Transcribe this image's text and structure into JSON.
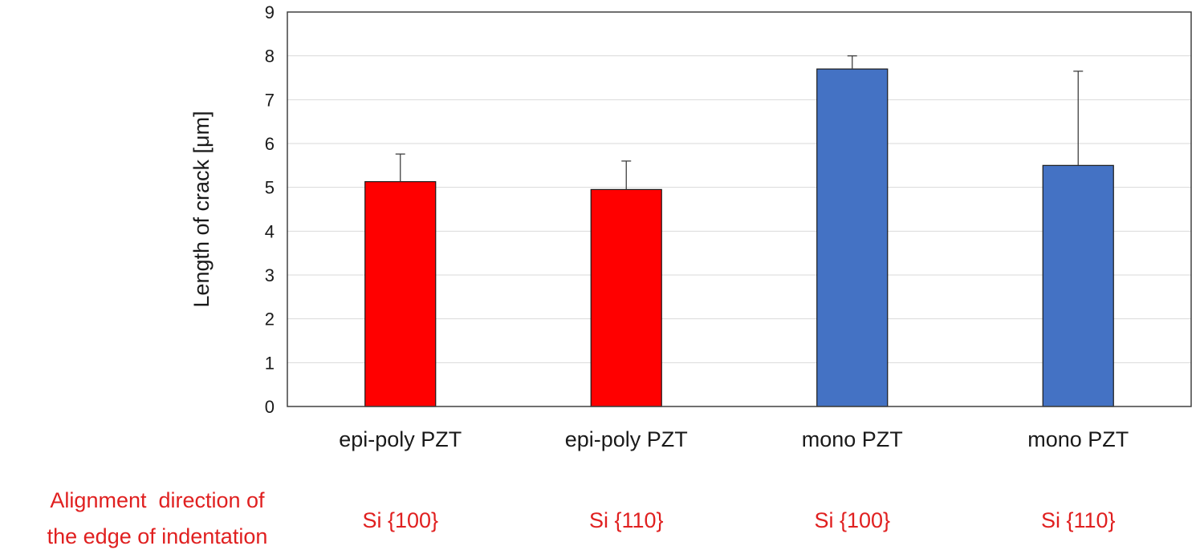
{
  "chart_data": {
    "type": "bar",
    "categories": [
      "epi-poly PZT",
      "epi-poly PZT",
      "mono PZT",
      "mono PZT"
    ],
    "values": [
      5.13,
      4.95,
      7.7,
      5.5
    ],
    "error_upper": [
      0.63,
      0.65,
      0.3,
      2.15
    ],
    "bar_colors": [
      "#ff0000",
      "#ff0000",
      "#4472c4",
      "#4472c4"
    ],
    "ylabel": "Length of crack [μm]",
    "ylim": [
      0,
      9
    ],
    "yticks": [
      0,
      1,
      2,
      3,
      4,
      5,
      6,
      7,
      8,
      9
    ],
    "grid": true,
    "legend": "none"
  },
  "annotation": {
    "row_label_line1": "Alignment  direction of",
    "row_label_line2": "the edge of indentation",
    "values": [
      "Si {100}",
      "Si {110}",
      "Si {100}",
      "Si {110}"
    ],
    "color": "#e02020"
  }
}
